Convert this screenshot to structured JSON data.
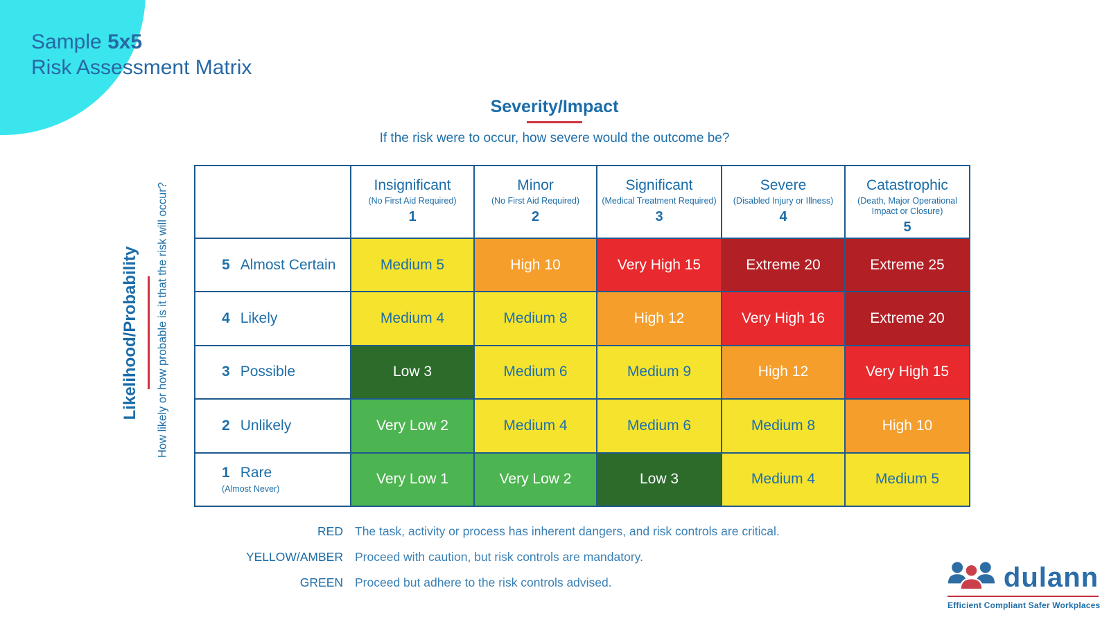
{
  "page": {
    "title_line1_regular": "Sample ",
    "title_line1_bold": "5x5",
    "title_line2": "Risk Assessment Matrix"
  },
  "severity": {
    "heading": "Severity/Impact",
    "question": "If the risk were to occur, how severe would the outcome be?"
  },
  "likelihood": {
    "heading": "Likelihood/Probability",
    "question": "How likely or how probable is it that the risk will occur?"
  },
  "table": {
    "columns": [
      {
        "title": "Insignificant",
        "sub": "(No First Aid Required)",
        "num": "1"
      },
      {
        "title": "Minor",
        "sub": "(No First Aid Required)",
        "num": "2"
      },
      {
        "title": "Significant",
        "sub": "(Medical Treatment Required)",
        "num": "3"
      },
      {
        "title": "Severe",
        "sub": "(Disabled Injury or Illness)",
        "num": "4"
      },
      {
        "title": "Catastrophic",
        "sub": "(Death, Major Operational Impact or Closure)",
        "num": "5"
      }
    ],
    "rows": [
      {
        "num": "5",
        "label": "Almost Certain",
        "sub": "",
        "cells": [
          {
            "label": "Medium 5",
            "level": "yellow"
          },
          {
            "label": "High 10",
            "level": "orange"
          },
          {
            "label": "Very High 15",
            "level": "red"
          },
          {
            "label": "Extreme 20",
            "level": "dark_red"
          },
          {
            "label": "Extreme 25",
            "level": "dark_red"
          }
        ]
      },
      {
        "num": "4",
        "label": "Likely",
        "sub": "",
        "cells": [
          {
            "label": "Medium 4",
            "level": "yellow"
          },
          {
            "label": "Medium 8",
            "level": "yellow"
          },
          {
            "label": "High 12",
            "level": "orange"
          },
          {
            "label": "Very High 16",
            "level": "red"
          },
          {
            "label": "Extreme 20",
            "level": "dark_red"
          }
        ]
      },
      {
        "num": "3",
        "label": "Possible",
        "sub": "",
        "cells": [
          {
            "label": "Low 3",
            "level": "dark_green"
          },
          {
            "label": "Medium 6",
            "level": "yellow"
          },
          {
            "label": "Medium 9",
            "level": "yellow"
          },
          {
            "label": "High 12",
            "level": "orange"
          },
          {
            "label": "Very High 15",
            "level": "red"
          }
        ]
      },
      {
        "num": "2",
        "label": "Unlikely",
        "sub": "",
        "cells": [
          {
            "label": "Very Low 2",
            "level": "green"
          },
          {
            "label": "Medium 4",
            "level": "yellow"
          },
          {
            "label": "Medium 6",
            "level": "yellow"
          },
          {
            "label": "Medium 8",
            "level": "yellow"
          },
          {
            "label": "High 10",
            "level": "orange"
          }
        ]
      },
      {
        "num": "1",
        "label": "Rare",
        "sub": "(Almost Never)",
        "cells": [
          {
            "label": "Very Low 1",
            "level": "green"
          },
          {
            "label": "Very Low 2",
            "level": "green"
          },
          {
            "label": "Low 3",
            "level": "dark_green"
          },
          {
            "label": "Medium 4",
            "level": "yellow"
          },
          {
            "label": "Medium 5",
            "level": "yellow"
          }
        ]
      }
    ]
  },
  "legend": [
    {
      "label": "RED",
      "text": "The task, activity or process has inherent dangers, and risk controls are critical."
    },
    {
      "label": "YELLOW/AMBER",
      "text": "Proceed with caution, but risk controls are mandatory."
    },
    {
      "label": "GREEN",
      "text": "Proceed but adhere to the risk controls advised."
    }
  ],
  "logo": {
    "name": "dulann",
    "tagline": "Efficient Compliant Safer Workplaces"
  },
  "colors": {
    "accent_blue": "#1F6FA8",
    "heading_blue": "#1B6CA8",
    "border_blue": "#1F5A8E",
    "accent_red": "#CD3340",
    "cyan_blob": "#3BE5EE",
    "logo_blue": "#2E6DA4",
    "logo_red": "#C9404A",
    "cell_styles": {
      "yellow": {
        "bg": "#F5E32E",
        "fg": "#1F6FA8"
      },
      "orange": {
        "bg": "#F59E2B",
        "fg": "#FFFFFF"
      },
      "red": {
        "bg": "#E8292D",
        "fg": "#FFFFFF"
      },
      "dark_red": {
        "bg": "#B22025",
        "fg": "#FFFFFF"
      },
      "green": {
        "bg": "#4CB450",
        "fg": "#FFFFFF"
      },
      "dark_green": {
        "bg": "#2D6B2B",
        "fg": "#FFFFFF"
      }
    }
  }
}
